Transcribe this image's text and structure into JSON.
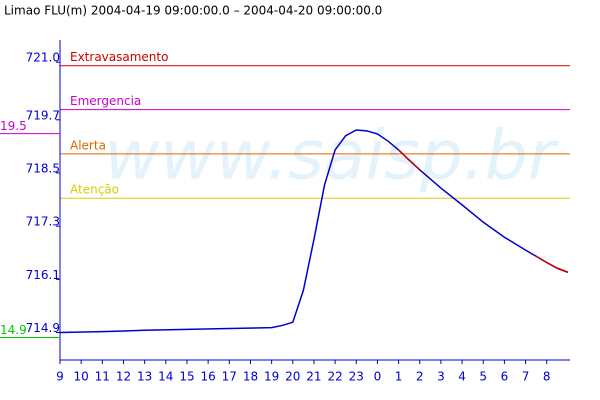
{
  "chart_data": {
    "type": "line",
    "title": "Limao FLU(m) 2004-04-19 09:00:00.0 – 2004-04-20 09:00:00.0",
    "watermark": "www.saisp.br",
    "x": [
      0,
      2,
      4,
      6,
      8,
      10,
      10.5,
      11,
      11.5,
      12,
      12.5,
      13,
      13.5,
      14,
      14.5,
      15,
      15.5,
      16,
      16.5,
      17,
      18,
      19,
      20,
      21,
      22,
      22.5,
      23,
      23.5,
      24
    ],
    "series": [
      {
        "color": "#0000cc",
        "values": [
          714.9,
          714.92,
          714.95,
          714.97,
          714.99,
          715.01,
          715.06,
          715.13,
          715.85,
          717.0,
          718.23,
          719.02,
          719.34,
          719.47,
          719.45,
          719.38,
          719.22,
          719.02,
          718.79,
          718.57,
          718.16,
          717.78,
          717.39,
          717.05,
          716.76,
          716.62,
          716.48,
          716.35,
          716.26
        ]
      },
      {
        "color": "#cc0000",
        "values": [
          null,
          null,
          null,
          null,
          null,
          null,
          null,
          null,
          null,
          null,
          null,
          null,
          null,
          null,
          null,
          null,
          null,
          719.02,
          718.79,
          718.57,
          null,
          null,
          null,
          null,
          null,
          716.62,
          716.48,
          716.35,
          716.26
        ]
      }
    ],
    "thresholds": [
      {
        "label": "Extravasamento",
        "value": 720.92,
        "color": "#cc0000"
      },
      {
        "label": "Emergencia",
        "value": 719.93,
        "color": "#cc00cc"
      },
      {
        "label": "Alerta",
        "value": 718.93,
        "color": "#dd6600"
      },
      {
        "label": "Atenção",
        "value": 717.93,
        "color": "#ddcc00"
      }
    ],
    "markers": [
      {
        "label": "19.5",
        "value": 719.5,
        "color": "#cc00cc"
      },
      {
        "label": "14.9",
        "value": 714.9,
        "color": "#00cc00"
      }
    ],
    "xlim": [
      0,
      24.1
    ],
    "xticks": [
      {
        "value": 0,
        "label": "9"
      },
      {
        "value": 1,
        "label": "10"
      },
      {
        "value": 2,
        "label": "11"
      },
      {
        "value": 3,
        "label": "12"
      },
      {
        "value": 4,
        "label": "13"
      },
      {
        "value": 5,
        "label": "14"
      },
      {
        "value": 6,
        "label": "15"
      },
      {
        "value": 7,
        "label": "16"
      },
      {
        "value": 8,
        "label": "17"
      },
      {
        "value": 9,
        "label": "18"
      },
      {
        "value": 10,
        "label": "19"
      },
      {
        "value": 11,
        "label": "20"
      },
      {
        "value": 12,
        "label": "21"
      },
      {
        "value": 13,
        "label": "22"
      },
      {
        "value": 14,
        "label": "23"
      },
      {
        "value": 15,
        "label": "0"
      },
      {
        "value": 16,
        "label": "1"
      },
      {
        "value": 17,
        "label": "2"
      },
      {
        "value": 18,
        "label": "3"
      },
      {
        "value": 19,
        "label": "4"
      },
      {
        "value": 20,
        "label": "5"
      },
      {
        "value": 21,
        "label": "6"
      },
      {
        "value": 22,
        "label": "7"
      },
      {
        "value": 23,
        "label": "8"
      }
    ],
    "ylim": [
      714.28,
      721.5
    ],
    "yticks": [
      {
        "value": 721,
        "label": "721.0"
      },
      719.7,
      718.5,
      717.3,
      716.1,
      714.9
    ]
  }
}
